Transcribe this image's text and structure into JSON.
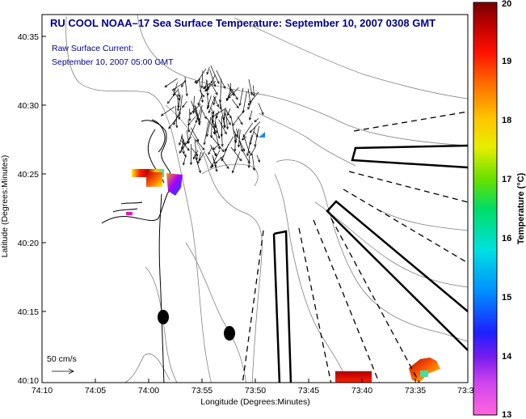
{
  "title": "RU COOL  NOAA–17  Sea Surface Temperature:  September 10, 2007 0308 GMT",
  "subtitle_line1": "Raw Surface Current:",
  "subtitle_line2": "September 10, 2007 05:00 GMT",
  "axes": {
    "xlabel": "Longitude (Degrees:Minutes)",
    "ylabel": "Latitude (Degrees:Minutes)",
    "x_ticks": [
      "74:10",
      "74:05",
      "74:00",
      "73:55",
      "73:50",
      "73:45",
      "73:40",
      "73:35",
      "73:3"
    ],
    "y_ticks": [
      "40:35",
      "40:30",
      "40:25",
      "40:20",
      "40:15",
      "40:10"
    ]
  },
  "scale_label": "50 cm/s",
  "colorbar": {
    "label": "Temperature (°C)",
    "ticks": [
      "20",
      "19",
      "18",
      "17",
      "16",
      "15",
      "14",
      "13"
    ]
  },
  "colors": {
    "title": "#00008b",
    "frame": "#000000",
    "contour": "#808080"
  },
  "chart_data": {
    "type": "heatmap",
    "title": "RU COOL  NOAA–17  Sea Surface Temperature:  September 10, 2007 0308 GMT",
    "xlabel": "Longitude (Degrees:Minutes)",
    "ylabel": "Latitude (Degrees:Minutes)",
    "x_range_deg_west": [
      74.1667,
      73.5
    ],
    "y_range_deg_north": [
      40.1667,
      40.5833
    ],
    "colorbar_range_c": [
      13,
      20
    ],
    "colorbar_label": "Temperature (°C)"
  }
}
